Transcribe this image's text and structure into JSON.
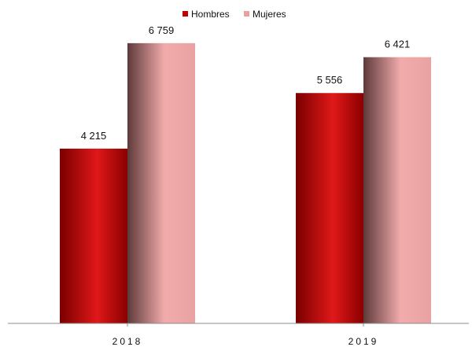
{
  "chart_data": {
    "type": "bar",
    "categories": [
      "2018",
      "2019"
    ],
    "series": [
      {
        "name": "Hombres",
        "values": [
          4215,
          5556
        ],
        "value_labels": [
          "4 215",
          "5 556"
        ],
        "color": "#c00000"
      },
      {
        "name": "Mujeres",
        "values": [
          6759,
          6421
        ],
        "value_labels": [
          "6 759",
          "6 421"
        ],
        "color": "#e8a0a0"
      }
    ],
    "ylim": [
      0,
      7800
    ],
    "grid": false,
    "legend": "top-center"
  }
}
